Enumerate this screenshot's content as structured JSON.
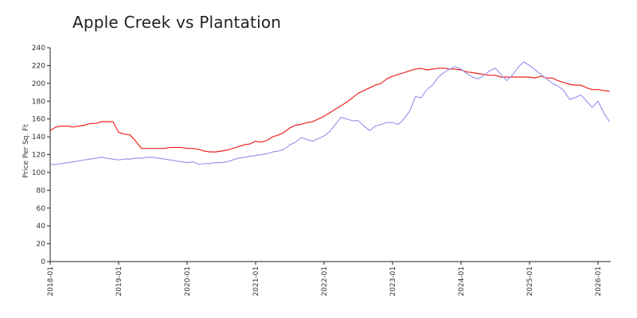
{
  "chart_data": {
    "type": "line",
    "title": "Apple Creek vs Plantation",
    "xlabel": "",
    "ylabel": "Price Per Sq. Ft",
    "ylim": [
      0,
      240
    ],
    "yticks": [
      0,
      20,
      40,
      60,
      80,
      100,
      120,
      140,
      160,
      180,
      200,
      220,
      240
    ],
    "xlim": [
      "2018-01",
      "2026-03"
    ],
    "xticks": [
      "2018-01",
      "2019-01",
      "2020-01",
      "2021-01",
      "2022-01",
      "2023-01",
      "2024-01",
      "2025-01",
      "2026-01"
    ],
    "grid": false,
    "legend": "none",
    "series": [
      {
        "color": "#ee2222",
        "points": [
          [
            "2018-01",
            147
          ],
          [
            "2018-02",
            151
          ],
          [
            "2018-03",
            152
          ],
          [
            "2018-04",
            152
          ],
          [
            "2018-05",
            151
          ],
          [
            "2018-06",
            152
          ],
          [
            "2018-07",
            153
          ],
          [
            "2018-08",
            155
          ],
          [
            "2018-09",
            155
          ],
          [
            "2018-10",
            157
          ],
          [
            "2018-11",
            157
          ],
          [
            "2018-12",
            157
          ],
          [
            "2019-01",
            145
          ],
          [
            "2019-02",
            143
          ],
          [
            "2019-03",
            142
          ],
          [
            "2019-04",
            135
          ],
          [
            "2019-05",
            127
          ],
          [
            "2019-06",
            127
          ],
          [
            "2019-07",
            127
          ],
          [
            "2019-08",
            127
          ],
          [
            "2019-09",
            127
          ],
          [
            "2019-10",
            128
          ],
          [
            "2019-11",
            128
          ],
          [
            "2019-12",
            128
          ],
          [
            "2020-01",
            127
          ],
          [
            "2020-02",
            127
          ],
          [
            "2020-03",
            126
          ],
          [
            "2020-04",
            124
          ],
          [
            "2020-05",
            123
          ],
          [
            "2020-06",
            123
          ],
          [
            "2020-07",
            124
          ],
          [
            "2020-08",
            125
          ],
          [
            "2020-09",
            127
          ],
          [
            "2020-10",
            129
          ],
          [
            "2020-11",
            131
          ],
          [
            "2020-12",
            132
          ],
          [
            "2021-01",
            135
          ],
          [
            "2021-02",
            134
          ],
          [
            "2021-03",
            136
          ],
          [
            "2021-04",
            140
          ],
          [
            "2021-05",
            142
          ],
          [
            "2021-06",
            145
          ],
          [
            "2021-07",
            150
          ],
          [
            "2021-08",
            153
          ],
          [
            "2021-09",
            154
          ],
          [
            "2021-10",
            156
          ],
          [
            "2021-11",
            157
          ],
          [
            "2021-12",
            160
          ],
          [
            "2022-01",
            163
          ],
          [
            "2022-02",
            167
          ],
          [
            "2022-03",
            171
          ],
          [
            "2022-04",
            175
          ],
          [
            "2022-05",
            179
          ],
          [
            "2022-06",
            184
          ],
          [
            "2022-07",
            189
          ],
          [
            "2022-08",
            192
          ],
          [
            "2022-09",
            195
          ],
          [
            "2022-10",
            198
          ],
          [
            "2022-11",
            200
          ],
          [
            "2022-12",
            205
          ],
          [
            "2023-01",
            208
          ],
          [
            "2023-02",
            210
          ],
          [
            "2023-03",
            212
          ],
          [
            "2023-04",
            214
          ],
          [
            "2023-05",
            216
          ],
          [
            "2023-06",
            217
          ],
          [
            "2023-07",
            215
          ],
          [
            "2023-08",
            216
          ],
          [
            "2023-09",
            217
          ],
          [
            "2023-10",
            217
          ],
          [
            "2023-11",
            216
          ],
          [
            "2023-12",
            216
          ],
          [
            "2024-01",
            215
          ],
          [
            "2024-02",
            213
          ],
          [
            "2024-03",
            212
          ],
          [
            "2024-04",
            211
          ],
          [
            "2024-05",
            210
          ],
          [
            "2024-06",
            209
          ],
          [
            "2024-07",
            209
          ],
          [
            "2024-08",
            207
          ],
          [
            "2024-09",
            207
          ],
          [
            "2024-10",
            207
          ],
          [
            "2024-11",
            207
          ],
          [
            "2024-12",
            207
          ],
          [
            "2025-01",
            207
          ],
          [
            "2025-02",
            206
          ],
          [
            "2025-03",
            208
          ],
          [
            "2025-04",
            206
          ],
          [
            "2025-05",
            206
          ],
          [
            "2025-06",
            203
          ],
          [
            "2025-07",
            201
          ],
          [
            "2025-08",
            199
          ],
          [
            "2025-09",
            198
          ],
          [
            "2025-10",
            198
          ],
          [
            "2025-11",
            195
          ],
          [
            "2025-12",
            193
          ],
          [
            "2026-01",
            193
          ],
          [
            "2026-02",
            192
          ],
          [
            "2026-03",
            191
          ]
        ]
      },
      {
        "color": "#9999ee",
        "points": [
          [
            "2018-01",
            109
          ],
          [
            "2018-02",
            109
          ],
          [
            "2018-03",
            110
          ],
          [
            "2018-04",
            111
          ],
          [
            "2018-05",
            112
          ],
          [
            "2018-06",
            113
          ],
          [
            "2018-07",
            114
          ],
          [
            "2018-08",
            115
          ],
          [
            "2018-09",
            116
          ],
          [
            "2018-10",
            117
          ],
          [
            "2018-11",
            116
          ],
          [
            "2018-12",
            115
          ],
          [
            "2019-01",
            114
          ],
          [
            "2019-02",
            115
          ],
          [
            "2019-03",
            115
          ],
          [
            "2019-04",
            116
          ],
          [
            "2019-05",
            116
          ],
          [
            "2019-06",
            117
          ],
          [
            "2019-07",
            117
          ],
          [
            "2019-08",
            116
          ],
          [
            "2019-09",
            115
          ],
          [
            "2019-10",
            114
          ],
          [
            "2019-11",
            113
          ],
          [
            "2019-12",
            112
          ],
          [
            "2020-01",
            111
          ],
          [
            "2020-02",
            112
          ],
          [
            "2020-03",
            109
          ],
          [
            "2020-04",
            110
          ],
          [
            "2020-05",
            110
          ],
          [
            "2020-06",
            111
          ],
          [
            "2020-07",
            111
          ],
          [
            "2020-08",
            112
          ],
          [
            "2020-09",
            114
          ],
          [
            "2020-10",
            116
          ],
          [
            "2020-11",
            117
          ],
          [
            "2020-12",
            118
          ],
          [
            "2021-01",
            119
          ],
          [
            "2021-02",
            120
          ],
          [
            "2021-03",
            121
          ],
          [
            "2021-04",
            123
          ],
          [
            "2021-05",
            124
          ],
          [
            "2021-06",
            126
          ],
          [
            "2021-07",
            131
          ],
          [
            "2021-08",
            134
          ],
          [
            "2021-09",
            139
          ],
          [
            "2021-10",
            137
          ],
          [
            "2021-11",
            135
          ],
          [
            "2021-12",
            138
          ],
          [
            "2022-01",
            141
          ],
          [
            "2022-02",
            146
          ],
          [
            "2022-03",
            154
          ],
          [
            "2022-04",
            162
          ],
          [
            "2022-05",
            160
          ],
          [
            "2022-06",
            158
          ],
          [
            "2022-07",
            158
          ],
          [
            "2022-08",
            152
          ],
          [
            "2022-09",
            147
          ],
          [
            "2022-10",
            152
          ],
          [
            "2022-11",
            154
          ],
          [
            "2022-12",
            156
          ],
          [
            "2023-01",
            156
          ],
          [
            "2023-02",
            154
          ],
          [
            "2023-03",
            160
          ],
          [
            "2023-04",
            169
          ],
          [
            "2023-05",
            185
          ],
          [
            "2023-06",
            184
          ],
          [
            "2023-07",
            193
          ],
          [
            "2023-08",
            198
          ],
          [
            "2023-09",
            207
          ],
          [
            "2023-10",
            212
          ],
          [
            "2023-11",
            216
          ],
          [
            "2023-12",
            219
          ],
          [
            "2024-01",
            216
          ],
          [
            "2024-02",
            211
          ],
          [
            "2024-03",
            207
          ],
          [
            "2024-04",
            205
          ],
          [
            "2024-05",
            209
          ],
          [
            "2024-06",
            214
          ],
          [
            "2024-07",
            217
          ],
          [
            "2024-08",
            210
          ],
          [
            "2024-09",
            203
          ],
          [
            "2024-10",
            209
          ],
          [
            "2024-11",
            218
          ],
          [
            "2024-12",
            224
          ],
          [
            "2025-01",
            220
          ],
          [
            "2025-02",
            215
          ],
          [
            "2025-03",
            210
          ],
          [
            "2025-04",
            205
          ],
          [
            "2025-05",
            200
          ],
          [
            "2025-06",
            197
          ],
          [
            "2025-07",
            192
          ],
          [
            "2025-08",
            182
          ],
          [
            "2025-09",
            184
          ],
          [
            "2025-10",
            187
          ],
          [
            "2025-11",
            180
          ],
          [
            "2025-12",
            173
          ],
          [
            "2026-01",
            180
          ],
          [
            "2026-02",
            167
          ],
          [
            "2026-03",
            157
          ]
        ]
      }
    ]
  }
}
